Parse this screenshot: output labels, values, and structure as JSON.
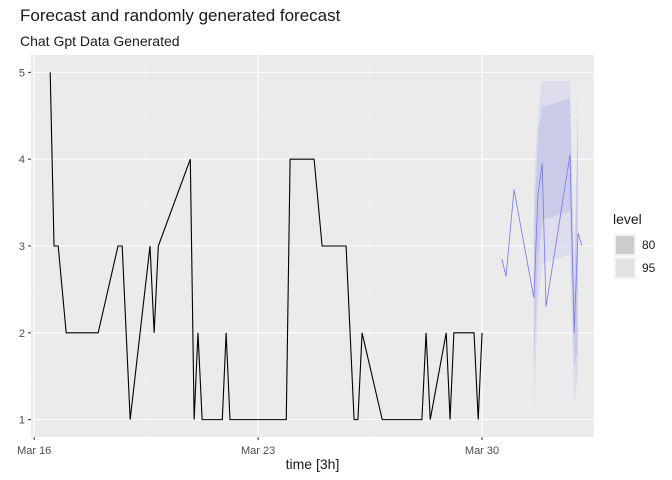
{
  "chart_data": {
    "type": "line",
    "title": "Forecast and randomly generated forecast",
    "subtitle": "Chat Gpt Data Generated",
    "xlabel": "time [3h]",
    "ylabel": "",
    "x_unit": "days",
    "x_ticks": [
      {
        "label": "Mar 16",
        "value": 16
      },
      {
        "label": "Mar 23",
        "value": 23
      },
      {
        "label": "Mar 30",
        "value": 30
      }
    ],
    "y_ticks": [
      1,
      2,
      3,
      4,
      5
    ],
    "xlim": [
      15.9,
      33.5
    ],
    "ylim": [
      0.8,
      5.2
    ],
    "grid": true,
    "legend": {
      "title": "level",
      "placement": "right",
      "entries": [
        {
          "label": "80",
          "color": "#cccccc"
        },
        {
          "label": "95",
          "color": "#e2e2e2"
        }
      ]
    },
    "series": [
      {
        "role": "history",
        "color": "#000000",
        "x": [
          16.5,
          16.62,
          16.75,
          17.0,
          18.0,
          18.62,
          18.75,
          19.0,
          19.62,
          19.75,
          19.88,
          20.88,
          21.0,
          21.12,
          21.25,
          21.88,
          22.0,
          22.12,
          23.88,
          24.0,
          24.12,
          24.75,
          25.0,
          25.12,
          25.75,
          26.0,
          26.12,
          26.25,
          26.88,
          27.0,
          28.12,
          28.25,
          28.38,
          28.88,
          29.0,
          29.12,
          29.75,
          29.88,
          30.0
        ],
        "y": [
          5,
          3,
          3,
          2,
          2,
          3,
          3,
          1,
          3,
          2,
          3,
          4,
          1,
          2,
          1,
          1,
          2,
          1,
          1,
          4,
          4,
          4,
          3,
          3,
          3,
          1,
          1,
          2,
          1,
          1,
          1,
          2,
          1,
          2,
          1,
          2,
          2,
          1,
          2
        ]
      },
      {
        "role": "forecast",
        "color": "#7777ee",
        "x": [
          30.62,
          30.75,
          31.0,
          31.62,
          31.75,
          31.88,
          32.0,
          32.75,
          32.88,
          33.0,
          33.12
        ],
        "y": [
          2.85,
          2.65,
          3.65,
          2.4,
          3.6,
          3.95,
          2.3,
          4.05,
          2.0,
          3.15,
          3.0
        ]
      }
    ],
    "intervals": [
      {
        "level": "80",
        "color": "#b9b9e6",
        "x": [
          31.62,
          31.75,
          31.88,
          32.75,
          32.88,
          33.0
        ],
        "lower": [
          1.6,
          2.8,
          3.3,
          3.4,
          1.6,
          1.8
        ],
        "upper": [
          3.2,
          4.3,
          4.6,
          4.7,
          2.4,
          4.5
        ]
      },
      {
        "level": "95",
        "color": "#d2d2ef",
        "x": [
          31.62,
          31.75,
          31.88,
          32.75,
          32.88,
          33.0
        ],
        "lower": [
          1.1,
          2.3,
          2.8,
          2.9,
          1.2,
          1.5
        ],
        "upper": [
          3.7,
          4.55,
          4.9,
          4.9,
          2.8,
          4.8
        ]
      }
    ]
  }
}
